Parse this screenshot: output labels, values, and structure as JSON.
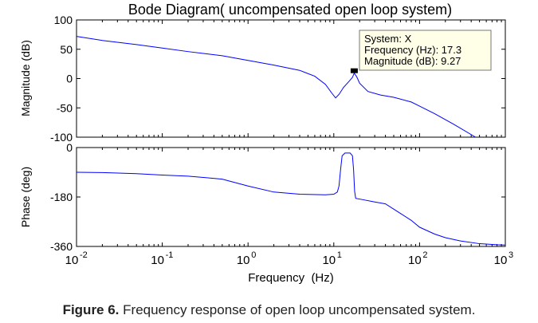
{
  "chart_data": [
    {
      "type": "line",
      "title": "Bode Diagram( uncompensated open loop system)",
      "xlabel": "",
      "ylabel": "Magnitude (dB)",
      "xscale": "log",
      "xlim": [
        0.01,
        1000
      ],
      "ylim": [
        -100,
        100
      ],
      "yticks": [
        100,
        50,
        0,
        -50,
        -100
      ],
      "grid": false,
      "series": [
        {
          "name": "Magnitude",
          "color": "#0000ff",
          "points": [
            [
              0.01,
              72
            ],
            [
              0.02,
              65
            ],
            [
              0.05,
              58
            ],
            [
              0.1,
              52
            ],
            [
              0.2,
              46
            ],
            [
              0.5,
              39
            ],
            [
              1,
              31
            ],
            [
              2,
              23
            ],
            [
              4,
              14
            ],
            [
              6,
              4
            ],
            [
              8,
              -10
            ],
            [
              9.5,
              -25
            ],
            [
              10.5,
              -33
            ],
            [
              11.5,
              -27
            ],
            [
              13,
              -15
            ],
            [
              15,
              -5
            ],
            [
              16.5,
              2
            ],
            [
              17.3,
              9.27
            ],
            [
              18.5,
              3
            ],
            [
              20,
              -8
            ],
            [
              25,
              -22
            ],
            [
              35,
              -28
            ],
            [
              50,
              -32
            ],
            [
              80,
              -40
            ],
            [
              100,
              -47
            ],
            [
              150,
              -60
            ],
            [
              250,
              -78
            ],
            [
              450,
              -100
            ]
          ]
        }
      ],
      "datatip": {
        "marker_x": 17.3,
        "marker_y": 9.27,
        "lines": [
          "System: X",
          "Frequency (Hz): 17.3",
          "Magnitude (dB): 9.27"
        ]
      }
    },
    {
      "type": "line",
      "title": "",
      "xlabel": "Frequency  (Hz)",
      "ylabel": "Phase (deg)",
      "xscale": "log",
      "xlim": [
        0.01,
        1000
      ],
      "ylim": [
        -360,
        0
      ],
      "yticks": [
        0,
        -180,
        -360
      ],
      "xticks": [
        {
          "base": "10",
          "exp": "-2"
        },
        {
          "base": "10",
          "exp": "-1"
        },
        {
          "base": "10",
          "exp": "0"
        },
        {
          "base": "10",
          "exp": "1"
        },
        {
          "base": "10",
          "exp": "2"
        },
        {
          "base": "10",
          "exp": "3"
        }
      ],
      "grid": false,
      "series": [
        {
          "name": "Phase",
          "color": "#0000ff",
          "points": [
            [
              0.01,
              -90
            ],
            [
              0.02,
              -91
            ],
            [
              0.05,
              -95
            ],
            [
              0.1,
              -100
            ],
            [
              0.2,
              -104
            ],
            [
              0.5,
              -115
            ],
            [
              1,
              -140
            ],
            [
              2,
              -162
            ],
            [
              4,
              -170
            ],
            [
              8,
              -172
            ],
            [
              10,
              -170
            ],
            [
              11,
              -162
            ],
            [
              11.5,
              -140
            ],
            [
              12,
              -80
            ],
            [
              12.5,
              -30
            ],
            [
              13.5,
              -20
            ],
            [
              15.5,
              -20
            ],
            [
              16.5,
              -30
            ],
            [
              17,
              -80
            ],
            [
              17.5,
              -160
            ],
            [
              18,
              -185
            ],
            [
              22,
              -190
            ],
            [
              30,
              -198
            ],
            [
              40,
              -205
            ],
            [
              60,
              -240
            ],
            [
              80,
              -265
            ],
            [
              100,
              -290
            ],
            [
              150,
              -315
            ],
            [
              200,
              -328
            ],
            [
              300,
              -340
            ],
            [
              500,
              -350
            ],
            [
              800,
              -354
            ],
            [
              1000,
              -355
            ]
          ]
        }
      ]
    }
  ],
  "figure_caption": {
    "label": "Figure 6.",
    "text": " Frequency response of open loop uncompensated system."
  }
}
